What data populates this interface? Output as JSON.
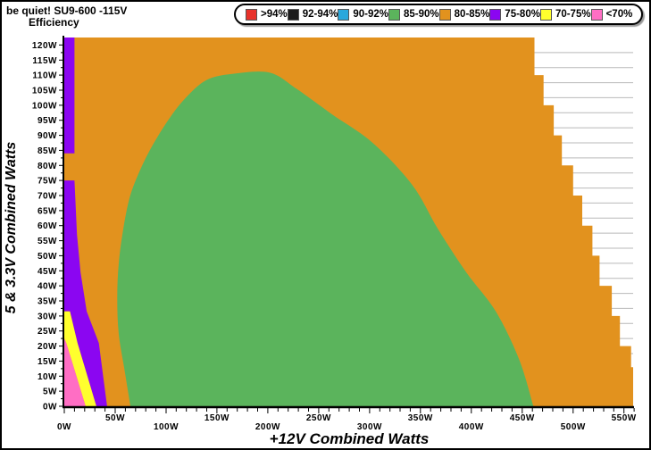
{
  "header": {
    "title": "be quiet! SU9-600 -115V",
    "subtitle": "Efficiency"
  },
  "legend": {
    "items": [
      {
        "label": ">94%",
        "color": "#E8312A"
      },
      {
        "label": "92-94%",
        "color": "#1B1B1B"
      },
      {
        "label": "90-92%",
        "color": "#29A8DC"
      },
      {
        "label": "85-90%",
        "color": "#5BB45C"
      },
      {
        "label": "80-85%",
        "color": "#E2921E"
      },
      {
        "label": "75-80%",
        "color": "#8B06F1"
      },
      {
        "label": "70-75%",
        "color": "#FFFF2E"
      },
      {
        "label": "<70%",
        "color": "#FF6EC4"
      }
    ]
  },
  "chart_data": {
    "type": "heatmap",
    "title": "be quiet! SU9-600 -115V",
    "subtitle": "Efficiency",
    "xlabel": "+12V Combined Watts",
    "ylabel": "5 & 3.3V Combined Watts",
    "xlim": [
      0,
      559
    ],
    "ylim": [
      0,
      122.5
    ],
    "x_tick_major_step": 50,
    "x_tick_minor_step": 10,
    "y_tick_major_step": 5,
    "y_tick_minor_step": 2.5,
    "x_tick_labels": [
      "0W",
      "50W",
      "100W",
      "150W",
      "200W",
      "250W",
      "300W",
      "350W",
      "400W",
      "450W",
      "500W",
      "550W"
    ],
    "y_tick_labels": [
      "0W",
      "5W",
      "10W",
      "15W",
      "20W",
      "25W",
      "30W",
      "35W",
      "40W",
      "45W",
      "50W",
      "55W",
      "60W",
      "65W",
      "70W",
      "75W",
      "80W",
      "85W",
      "90W",
      "95W",
      "100W",
      "105W",
      "110W",
      "115W",
      "120W"
    ],
    "grid": {
      "show_horizontal": true,
      "step": 5,
      "offset": 2.5,
      "color": "#B9B9B9"
    },
    "legend_position": "top-right",
    "efficiency_bands": [
      ">94%",
      "92-94%",
      "90-92%",
      "85-90%",
      "80-85%",
      "75-80%",
      "70-75%",
      "<70%"
    ],
    "regions": [
      {
        "band": "80-85%",
        "color": "#E2921E",
        "smooth": false,
        "points": [
          [
            0,
            122.5
          ],
          [
            462,
            122.5
          ],
          [
            462,
            110
          ],
          [
            471,
            110
          ],
          [
            471,
            100
          ],
          [
            481,
            100
          ],
          [
            481,
            90
          ],
          [
            489,
            90
          ],
          [
            489,
            80
          ],
          [
            500,
            80
          ],
          [
            500,
            70
          ],
          [
            509,
            70
          ],
          [
            509,
            60
          ],
          [
            519,
            60
          ],
          [
            519,
            50
          ],
          [
            526,
            50
          ],
          [
            526,
            40
          ],
          [
            538,
            40
          ],
          [
            538,
            30
          ],
          [
            546,
            30
          ],
          [
            546,
            20
          ],
          [
            557,
            20
          ],
          [
            557,
            13
          ],
          [
            559,
            13
          ],
          [
            559,
            0
          ],
          [
            0,
            0
          ]
        ]
      },
      {
        "band": "75-80%",
        "color": "#8B06F1",
        "smooth": false,
        "points": [
          [
            0,
            122.5
          ],
          [
            10,
            122.5
          ],
          [
            10,
            84
          ],
          [
            0,
            84
          ]
        ]
      },
      {
        "band": "75-80%",
        "color": "#8B06F1",
        "smooth": false,
        "points": [
          [
            0,
            75
          ],
          [
            10,
            75
          ],
          [
            12.5,
            57
          ],
          [
            16,
            44.5
          ],
          [
            22,
            31.5
          ],
          [
            34,
            21
          ],
          [
            42,
            0
          ],
          [
            31.5,
            0
          ],
          [
            13,
            21
          ],
          [
            5.5,
            31.5
          ],
          [
            0,
            31.5
          ]
        ]
      },
      {
        "band": "70-75%",
        "color": "#FFFF2E",
        "smooth": false,
        "points": [
          [
            0,
            31.5
          ],
          [
            5.5,
            31.5
          ],
          [
            13,
            21
          ],
          [
            31.5,
            0
          ],
          [
            21,
            0
          ],
          [
            2,
            21
          ],
          [
            0,
            22.5
          ]
        ]
      },
      {
        "band": "<70%",
        "color": "#FF6EC4",
        "smooth": false,
        "points": [
          [
            0,
            22.5
          ],
          [
            2,
            21
          ],
          [
            21,
            0
          ],
          [
            0,
            0
          ]
        ]
      },
      {
        "band": "85-90%",
        "color": "#5BB45C",
        "smooth": true,
        "points": [
          [
            65,
            0
          ],
          [
            59,
            12.5
          ],
          [
            53.5,
            24
          ],
          [
            52,
            36
          ],
          [
            53.5,
            47.5
          ],
          [
            58,
            59
          ],
          [
            64,
            69
          ],
          [
            72,
            76.5
          ],
          [
            84,
            85
          ],
          [
            101,
            94.5
          ],
          [
            118,
            102
          ],
          [
            140,
            108.4
          ],
          [
            167,
            110.5
          ],
          [
            202,
            110.8
          ],
          [
            228,
            105.5
          ],
          [
            263,
            97
          ],
          [
            303,
            87.5
          ],
          [
            342,
            73.5
          ],
          [
            367,
            59
          ],
          [
            395,
            44.5
          ],
          [
            424,
            31.5
          ],
          [
            447,
            15.5
          ],
          [
            461,
            0
          ]
        ]
      }
    ]
  }
}
